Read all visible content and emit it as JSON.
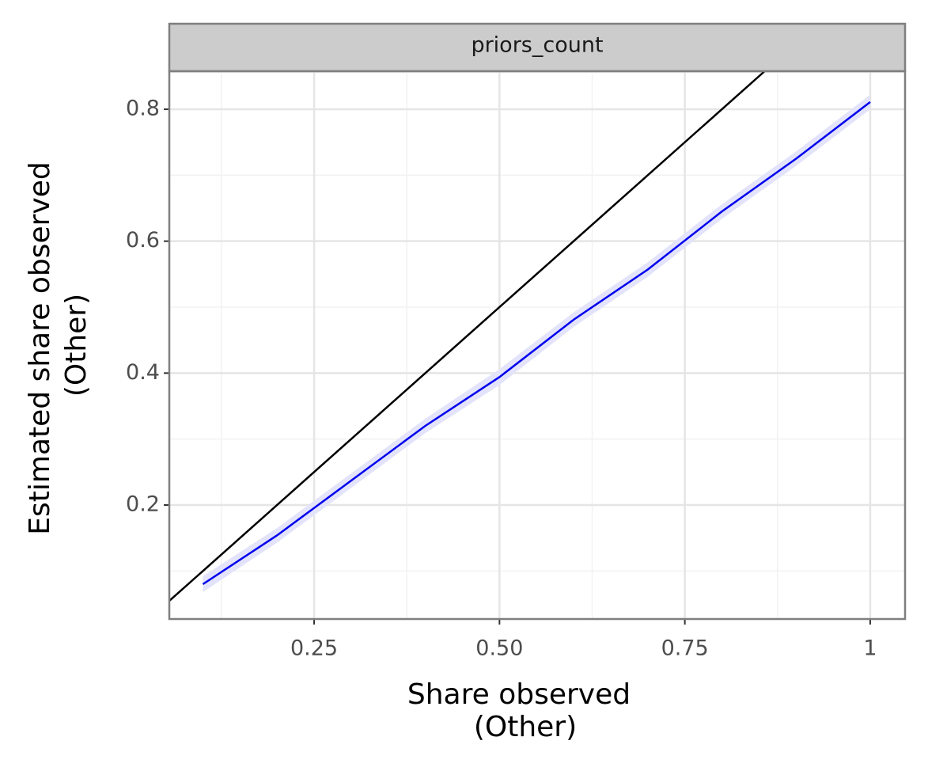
{
  "chart_data": {
    "type": "line",
    "facet": "priors_count",
    "xlabel": [
      "Share observed",
      "(Other)"
    ],
    "ylabel": [
      "Estimated share observed",
      "(Other)"
    ],
    "xlim": [
      0.0547,
      1.047
    ],
    "ylim": [
      0.0272,
      0.8576
    ],
    "xticks": [
      0.25,
      {
        "value": 0.5,
        "label": "0.50"
      },
      0.75,
      1
    ],
    "yticks": [
      0.2,
      0.4,
      0.6,
      0.8
    ],
    "x_minor_ticks": [
      0.125,
      0.375,
      0.625,
      0.875
    ],
    "y_minor_ticks": [
      0.1,
      0.3,
      0.5,
      0.7
    ],
    "grid": true,
    "band": {
      "color": "#e3e3fb",
      "x": [
        0.1,
        0.2,
        0.3,
        0.4,
        0.5,
        0.6,
        0.7,
        0.8,
        0.9,
        1.0
      ],
      "lower": [
        0.068,
        0.143,
        0.226,
        0.309,
        0.382,
        0.47,
        0.546,
        0.634,
        0.714,
        0.8
      ],
      "upper": [
        0.092,
        0.165,
        0.248,
        0.331,
        0.406,
        0.492,
        0.568,
        0.656,
        0.736,
        0.822
      ]
    },
    "series": [
      {
        "color": "#000000",
        "x": [
          0.0547,
          0.8576
        ],
        "values": [
          0.0547,
          0.8576
        ]
      },
      {
        "color": "#0000ee",
        "x": [
          0.1,
          0.2,
          0.3,
          0.4,
          0.5,
          0.6,
          0.7,
          0.8,
          0.9,
          1.0
        ],
        "values": [
          0.08,
          0.154,
          0.237,
          0.32,
          0.394,
          0.481,
          0.557,
          0.645,
          0.725,
          0.811
        ]
      }
    ]
  }
}
